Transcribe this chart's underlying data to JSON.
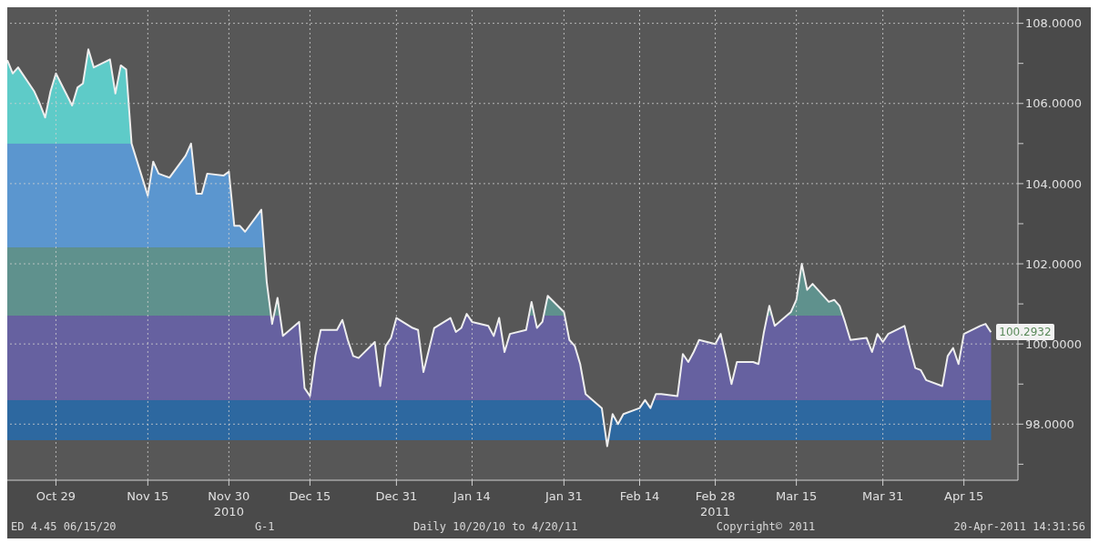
{
  "chart_data": {
    "type": "area",
    "x": [
      "2010-10-20",
      "2010-10-21",
      "2010-10-22",
      "2010-10-25",
      "2010-10-26",
      "2010-10-27",
      "2010-10-28",
      "2010-10-29",
      "2010-11-01",
      "2010-11-02",
      "2010-11-03",
      "2010-11-04",
      "2010-11-05",
      "2010-11-08",
      "2010-11-09",
      "2010-11-10",
      "2010-11-11",
      "2010-11-12",
      "2010-11-15",
      "2010-11-16",
      "2010-11-17",
      "2010-11-18",
      "2010-11-19",
      "2010-11-22",
      "2010-11-23",
      "2010-11-24",
      "2010-11-25",
      "2010-11-26",
      "2010-11-29",
      "2010-11-30",
      "2010-12-01",
      "2010-12-02",
      "2010-12-03",
      "2010-12-06",
      "2010-12-07",
      "2010-12-08",
      "2010-12-09",
      "2010-12-10",
      "2010-12-13",
      "2010-12-14",
      "2010-12-15",
      "2010-12-16",
      "2010-12-17",
      "2010-12-20",
      "2010-12-21",
      "2010-12-22",
      "2010-12-23",
      "2010-12-24",
      "2010-12-27",
      "2010-12-28",
      "2010-12-29",
      "2010-12-30",
      "2010-12-31",
      "2011-01-03",
      "2011-01-04",
      "2011-01-05",
      "2011-01-06",
      "2011-01-07",
      "2011-01-10",
      "2011-01-11",
      "2011-01-12",
      "2011-01-13",
      "2011-01-14",
      "2011-01-17",
      "2011-01-18",
      "2011-01-19",
      "2011-01-20",
      "2011-01-21",
      "2011-01-24",
      "2011-01-25",
      "2011-01-26",
      "2011-01-27",
      "2011-01-28",
      "2011-01-31",
      "2011-02-01",
      "2011-02-02",
      "2011-02-03",
      "2011-02-04",
      "2011-02-07",
      "2011-02-08",
      "2011-02-09",
      "2011-02-10",
      "2011-02-11",
      "2011-02-14",
      "2011-02-15",
      "2011-02-16",
      "2011-02-17",
      "2011-02-18",
      "2011-02-21",
      "2011-02-22",
      "2011-02-23",
      "2011-02-24",
      "2011-02-25",
      "2011-02-28",
      "2011-03-01",
      "2011-03-02",
      "2011-03-03",
      "2011-03-04",
      "2011-03-07",
      "2011-03-08",
      "2011-03-09",
      "2011-03-10",
      "2011-03-11",
      "2011-03-14",
      "2011-03-15",
      "2011-03-16",
      "2011-03-17",
      "2011-03-18",
      "2011-03-21",
      "2011-03-22",
      "2011-03-23",
      "2011-03-24",
      "2011-03-25",
      "2011-03-28",
      "2011-03-29",
      "2011-03-30",
      "2011-03-31",
      "2011-04-01",
      "2011-04-04",
      "2011-04-05",
      "2011-04-06",
      "2011-04-07",
      "2011-04-08",
      "2011-04-11",
      "2011-04-12",
      "2011-04-13",
      "2011-04-14",
      "2011-04-15",
      "2011-04-18",
      "2011-04-19",
      "2011-04-20"
    ],
    "series": [
      {
        "color": "#eeeeee",
        "values": [
          107.08,
          106.75,
          106.9,
          106.3,
          106.0,
          105.65,
          106.3,
          106.75,
          105.95,
          106.4,
          106.5,
          107.35,
          106.9,
          107.1,
          106.25,
          106.95,
          106.85,
          105.0,
          103.7,
          104.55,
          104.25,
          104.2,
          104.15,
          104.7,
          105.0,
          103.75,
          103.75,
          104.25,
          104.2,
          104.3,
          102.95,
          102.95,
          102.8,
          103.35,
          101.55,
          100.5,
          101.15,
          100.2,
          100.55,
          98.9,
          98.7,
          99.7,
          100.35,
          100.35,
          100.6,
          100.1,
          99.7,
          99.65,
          100.05,
          98.95,
          99.95,
          100.15,
          100.65,
          100.4,
          100.35,
          99.3,
          99.85,
          100.4,
          100.65,
          100.3,
          100.4,
          100.75,
          100.55,
          100.45,
          100.2,
          100.65,
          99.8,
          100.25,
          100.35,
          101.05,
          100.4,
          100.55,
          101.2,
          100.8,
          100.1,
          99.95,
          99.5,
          98.75,
          98.4,
          97.45,
          98.25,
          98.0,
          98.25,
          98.4,
          98.6,
          98.4,
          98.75,
          98.75,
          98.7,
          99.75,
          99.55,
          99.8,
          100.1,
          100.0,
          100.25,
          99.65,
          99.0,
          99.55,
          99.55,
          99.5,
          100.3,
          100.95,
          100.45,
          100.8,
          101.1,
          102.0,
          101.35,
          101.5,
          101.05,
          101.1,
          100.95,
          100.55,
          100.1,
          100.15,
          99.8,
          100.25,
          100.05,
          100.25,
          100.45,
          99.9,
          99.4,
          99.35,
          99.1,
          98.95,
          99.7,
          99.9,
          99.5,
          100.25,
          100.45,
          100.5,
          100.2932
        ]
      }
    ],
    "xlim": [
      "2010-10-20",
      "2011-04-25"
    ],
    "xticks": [
      {
        "value": "2010-10-29",
        "label": "Oct 29"
      },
      {
        "value": "2010-11-15",
        "label": "Nov 15"
      },
      {
        "value": "2010-11-30",
        "label": "Nov 30\n2010"
      },
      {
        "value": "2010-12-15",
        "label": "Dec 15"
      },
      {
        "value": "2010-12-31",
        "label": "Dec 31"
      },
      {
        "value": "2011-01-14",
        "label": "Jan 14"
      },
      {
        "value": "2011-01-31",
        "label": "Jan 31"
      },
      {
        "value": "2011-02-14",
        "label": "Feb 14"
      },
      {
        "value": "2011-02-28",
        "label": "Feb 28\n2011"
      },
      {
        "value": "2011-03-15",
        "label": "Mar 15"
      },
      {
        "value": "2011-03-31",
        "label": "Mar 31"
      },
      {
        "value": "2011-04-15",
        "label": "Apr 15"
      }
    ],
    "ylim": [
      96.6,
      108.4
    ],
    "yticks": [
      {
        "value": 97,
        "label": null
      },
      {
        "value": 98,
        "label": "98.0000"
      },
      {
        "value": 99,
        "label": null
      },
      {
        "value": 100,
        "label": "100.0000"
      },
      {
        "value": 101,
        "label": null
      },
      {
        "value": 102,
        "label": "102.0000"
      },
      {
        "value": 103,
        "label": null
      },
      {
        "value": 104,
        "label": "104.0000"
      },
      {
        "value": 105,
        "label": null
      },
      {
        "value": 106,
        "label": "106.0000"
      },
      {
        "value": 107,
        "label": null
      },
      {
        "value": 108,
        "label": "108.0000"
      }
    ],
    "bands": [
      {
        "axis": "y",
        "from": 105,
        "to": 108.4,
        "color": "#5ecbc8"
      },
      {
        "axis": "y",
        "from": 102.4,
        "to": 105,
        "color": "#5b96cf"
      },
      {
        "axis": "y",
        "from": 100.7,
        "to": 102.4,
        "color": "#5f918d"
      },
      {
        "axis": "y",
        "from": 98.6,
        "to": 100.7,
        "color": "#6661a0"
      },
      {
        "axis": "y",
        "from": 97.6,
        "to": 98.6,
        "color": "#2d68a0"
      }
    ],
    "grid": true,
    "annotations": [
      {
        "text": "100.2932",
        "x": "2011-04-20",
        "y": 100.2932
      },
      "ED 4.45 06/15/20",
      "G-1",
      "Daily 10/20/10 to 4/20/11",
      "Copyright© 2011",
      "20-Apr-2011 14:31:56"
    ]
  }
}
